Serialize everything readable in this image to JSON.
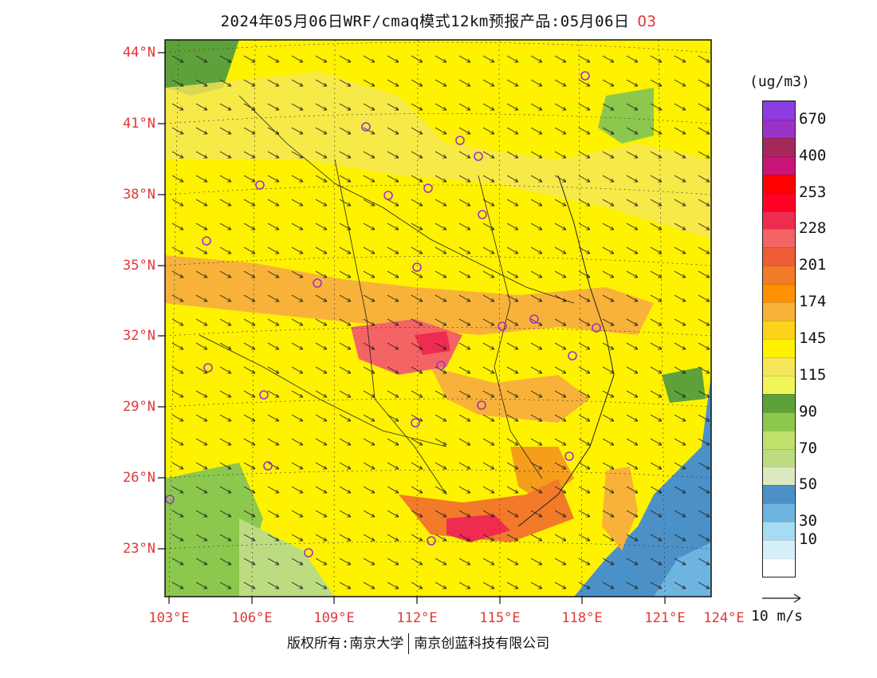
{
  "title": {
    "text": "2024年05月06日WRF/cmaq模式12km预报产品:05月06日",
    "pollutant": "O3"
  },
  "lat_labels": [
    "44°N",
    "41°N",
    "38°N",
    "35°N",
    "32°N",
    "29°N",
    "26°N",
    "23°N"
  ],
  "lon_labels": [
    "103°E",
    "106°E",
    "109°E",
    "112°E",
    "115°E",
    "118°E",
    "121°E",
    "124°E"
  ],
  "legend": {
    "unit": "(ug/m3)",
    "bins": [
      {
        "label": "",
        "color": "#ffffff"
      },
      {
        "label": "10",
        "color": "#d6f0fa"
      },
      {
        "label": "30",
        "color": "#a6dcf3"
      },
      {
        "label": "",
        "color": "#6db4e0"
      },
      {
        "label": "50",
        "color": "#4b91c8"
      },
      {
        "label": "",
        "color": "#dce9c0"
      },
      {
        "label": "70",
        "color": "#bddc82"
      },
      {
        "label": "",
        "color": "#c2e06c"
      },
      {
        "label": "90",
        "color": "#8cc84e"
      },
      {
        "label": "",
        "color": "#5ea13a"
      },
      {
        "label": "115",
        "color": "#f0f55a"
      },
      {
        "label": "",
        "color": "#f5e65a"
      },
      {
        "label": "145",
        "color": "#fff200"
      },
      {
        "label": "",
        "color": "#fcd21a"
      },
      {
        "label": "174",
        "color": "#f8b23a"
      },
      {
        "label": "",
        "color": "#ff9000"
      },
      {
        "label": "201",
        "color": "#f27a28"
      },
      {
        "label": "",
        "color": "#ee5c38"
      },
      {
        "label": "228",
        "color": "#f56464"
      },
      {
        "label": "",
        "color": "#ef2c50"
      },
      {
        "label": "253",
        "color": "#ff0026"
      },
      {
        "label": "",
        "color": "#ff0000"
      },
      {
        "label": "400",
        "color": "#c81478"
      },
      {
        "label": "",
        "color": "#a5285a"
      },
      {
        "label": "670",
        "color": "#9b32c8"
      },
      {
        "label": "",
        "color": "#8c3ce0"
      }
    ]
  },
  "wind_scale_label": "10 m/s",
  "copyright": {
    "left": "版权所有:南京大学",
    "right": "南京创蓝科技有限公司"
  },
  "colors": {
    "axis_label": "#e23636",
    "ocean": "#4b91c8",
    "station_marker": "#9b32c8"
  }
}
